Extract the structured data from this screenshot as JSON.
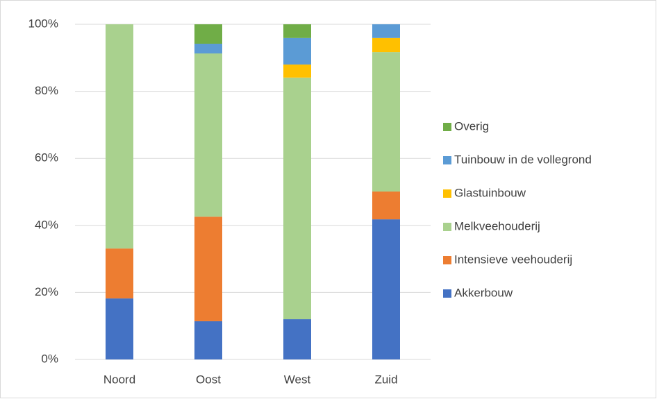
{
  "chart_data": {
    "type": "stacked_bar",
    "categories": [
      "Noord",
      "Oost",
      "West",
      "Zuid"
    ],
    "series": [
      {
        "name": "Akkerbouw",
        "color": "#4472c4",
        "values": [
          18.2,
          11.4,
          12.0,
          41.8
        ]
      },
      {
        "name": "Intensieve veehouderij",
        "color": "#ed7d31",
        "values": [
          14.9,
          31.2,
          0,
          8.3
        ]
      },
      {
        "name": "Melkveehouderij",
        "color": "#a9d18e",
        "values": [
          66.9,
          48.7,
          72.1,
          41.6
        ]
      },
      {
        "name": "Glastuinbouw",
        "color": "#ffc000",
        "values": [
          0,
          0,
          3.9,
          4.2
        ]
      },
      {
        "name": "Tuinbouw in de vollegrond",
        "color": "#5b9bd5",
        "values": [
          0,
          2.9,
          7.9,
          4.1
        ]
      },
      {
        "name": "Overig",
        "color": "#70ad47",
        "values": [
          0,
          5.8,
          4.1,
          0
        ]
      }
    ],
    "ylim": [
      0,
      100
    ],
    "yticks": [
      {
        "value": 0,
        "label": "0%"
      },
      {
        "value": 20,
        "label": "20%"
      },
      {
        "value": 40,
        "label": "40%"
      },
      {
        "value": 60,
        "label": "60%"
      },
      {
        "value": 80,
        "label": "80%"
      },
      {
        "value": 100,
        "label": "100%"
      }
    ],
    "grid": true,
    "legend": "right"
  }
}
